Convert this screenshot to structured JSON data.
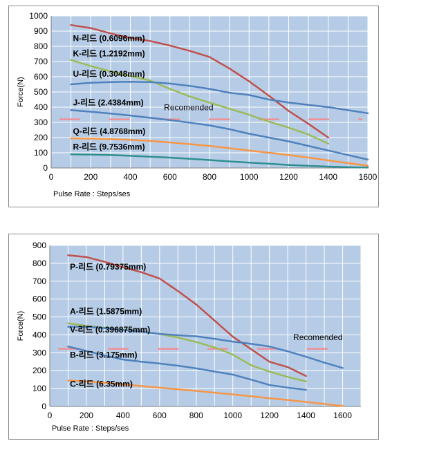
{
  "colors": {
    "plot_bg": "#b6cce6",
    "grid": "#ffffff",
    "recommended": "#ef8f97"
  },
  "chart_data": [
    {
      "type": "line",
      "xlabel": "Pulse Rate : Steps/ses",
      "ylabel": "Force(N)",
      "xlim": [
        0,
        1600
      ],
      "ylim": [
        0,
        1000
      ],
      "xticks": [
        0,
        200,
        400,
        600,
        800,
        1000,
        1200,
        1400,
        1600
      ],
      "yticks": [
        0,
        100,
        200,
        300,
        400,
        500,
        600,
        700,
        800,
        900,
        1000
      ],
      "grid": true,
      "annotation": {
        "text": "Recomended",
        "x": 570,
        "y": 380
      },
      "reference_line": {
        "y": 320,
        "style": "dashed"
      },
      "series": [
        {
          "name": "N-리드 (0.6096mm)",
          "color": "#c0504d",
          "x": [
            100,
            200,
            300,
            400,
            500,
            600,
            700,
            800,
            900,
            1000,
            1100,
            1200,
            1300,
            1400
          ],
          "y": [
            940,
            920,
            885,
            855,
            835,
            805,
            770,
            730,
            655,
            570,
            475,
            375,
            290,
            200
          ],
          "label": {
            "x": 110,
            "y": 835
          }
        },
        {
          "name": "K-리드 (1.2192mm)",
          "color": "#9bbb59",
          "x": [
            100,
            200,
            300,
            400,
            500,
            600,
            700,
            800,
            900,
            1000,
            1100,
            1200,
            1300,
            1400
          ],
          "y": [
            710,
            670,
            635,
            605,
            575,
            520,
            470,
            430,
            390,
            350,
            305,
            265,
            220,
            160
          ],
          "label": {
            "x": 110,
            "y": 735
          }
        },
        {
          "name": "U-리드 (0.3048mm)",
          "color": "#4f81bd",
          "x": [
            100,
            200,
            300,
            400,
            500,
            600,
            700,
            800,
            900,
            1000,
            1100,
            1200,
            1300,
            1400,
            1500,
            1600
          ],
          "y": [
            550,
            560,
            565,
            567,
            565,
            555,
            540,
            520,
            495,
            480,
            450,
            430,
            415,
            400,
            380,
            360
          ],
          "label": {
            "x": 110,
            "y": 600
          }
        },
        {
          "name": "J-리드 (2.4384mm)",
          "color": "#4f81bd",
          "x": [
            100,
            200,
            300,
            400,
            500,
            600,
            700,
            800,
            900,
            1000,
            1100,
            1200,
            1300,
            1400,
            1500,
            1600
          ],
          "y": [
            380,
            370,
            358,
            345,
            330,
            315,
            298,
            280,
            255,
            225,
            200,
            175,
            145,
            115,
            85,
            55
          ],
          "label": {
            "x": 110,
            "y": 412
          }
        },
        {
          "name": "Q-리드 (4.8768mm)",
          "color": "#f79646",
          "x": [
            100,
            200,
            300,
            400,
            500,
            600,
            700,
            800,
            900,
            1000,
            1100,
            1200,
            1300,
            1400,
            1500,
            1600
          ],
          "y": [
            195,
            193,
            190,
            185,
            178,
            168,
            157,
            145,
            130,
            115,
            100,
            85,
            68,
            50,
            32,
            15
          ],
          "label": {
            "x": 110,
            "y": 222
          }
        },
        {
          "name": "R-리드 (9.7536mm)",
          "color": "#2f8f8f",
          "x": [
            100,
            200,
            300,
            400,
            500,
            600,
            700,
            800,
            900,
            1000,
            1100,
            1200,
            1300,
            1400,
            1500,
            1600
          ],
          "y": [
            90,
            88,
            85,
            80,
            74,
            68,
            60,
            52,
            43,
            35,
            28,
            20,
            14,
            9,
            5,
            3
          ],
          "label": {
            "x": 110,
            "y": 120
          }
        }
      ]
    },
    {
      "type": "line",
      "xlabel": "Pulse Rate : Steps/ses",
      "ylabel": "Force(N)",
      "xlim": [
        0,
        1700
      ],
      "ylim": [
        0,
        900
      ],
      "xticks": [
        0,
        200,
        400,
        600,
        800,
        1000,
        1200,
        1400,
        1600
      ],
      "yticks": [
        0,
        100,
        200,
        300,
        400,
        500,
        600,
        700,
        800,
        900
      ],
      "grid": true,
      "annotation": {
        "text": "Recomended",
        "x": 1330,
        "y": 370
      },
      "reference_line": {
        "y": 322,
        "style": "dashed"
      },
      "series": [
        {
          "name": "P-리드 (0.79375mm)",
          "color": "#c0504d",
          "x": [
            100,
            200,
            300,
            400,
            500,
            600,
            700,
            800,
            900,
            1000,
            1100,
            1200,
            1300,
            1400
          ],
          "y": [
            845,
            835,
            808,
            778,
            750,
            715,
            645,
            570,
            480,
            390,
            320,
            250,
            220,
            170
          ],
          "label": {
            "x": 110,
            "y": 765
          }
        },
        {
          "name": "A-리드 (1.5875mm)",
          "color": "#9bbb59",
          "x": [
            100,
            200,
            300,
            400,
            500,
            600,
            700,
            800,
            900,
            1000,
            1100,
            1200,
            1300,
            1400
          ],
          "y": [
            465,
            450,
            440,
            430,
            420,
            405,
            385,
            360,
            330,
            290,
            230,
            195,
            165,
            140
          ],
          "label": {
            "x": 110,
            "y": 515
          }
        },
        {
          "name": "V-리드 (0.396875mm)",
          "color": "#4f81bd",
          "x": [
            100,
            200,
            300,
            400,
            500,
            600,
            700,
            800,
            900,
            1000,
            1100,
            1200,
            1300,
            1400,
            1500,
            1600
          ],
          "y": [
            445,
            445,
            438,
            428,
            418,
            405,
            398,
            392,
            378,
            362,
            350,
            335,
            308,
            278,
            245,
            215
          ],
          "label": {
            "x": 110,
            "y": 413
          }
        },
        {
          "name": "B-리드 (3.175mm)",
          "color": "#4f81bd",
          "x": [
            100,
            200,
            300,
            400,
            500,
            600,
            700,
            800,
            900,
            1000,
            1100,
            1200,
            1300,
            1400
          ],
          "y": [
            335,
            310,
            285,
            262,
            250,
            240,
            228,
            213,
            195,
            178,
            150,
            120,
            105,
            93
          ],
          "label": {
            "x": 110,
            "y": 272
          }
        },
        {
          "name": "C-리드 (6.35mm)",
          "color": "#f79646",
          "x": [
            100,
            200,
            300,
            400,
            500,
            600,
            700,
            800,
            900,
            1000,
            1100,
            1200,
            1300,
            1400,
            1500,
            1600
          ],
          "y": [
            145,
            140,
            132,
            123,
            114,
            105,
            96,
            87,
            77,
            67,
            57,
            46,
            36,
            25,
            14,
            3
          ],
          "label": {
            "x": 110,
            "y": 110
          }
        }
      ]
    }
  ]
}
